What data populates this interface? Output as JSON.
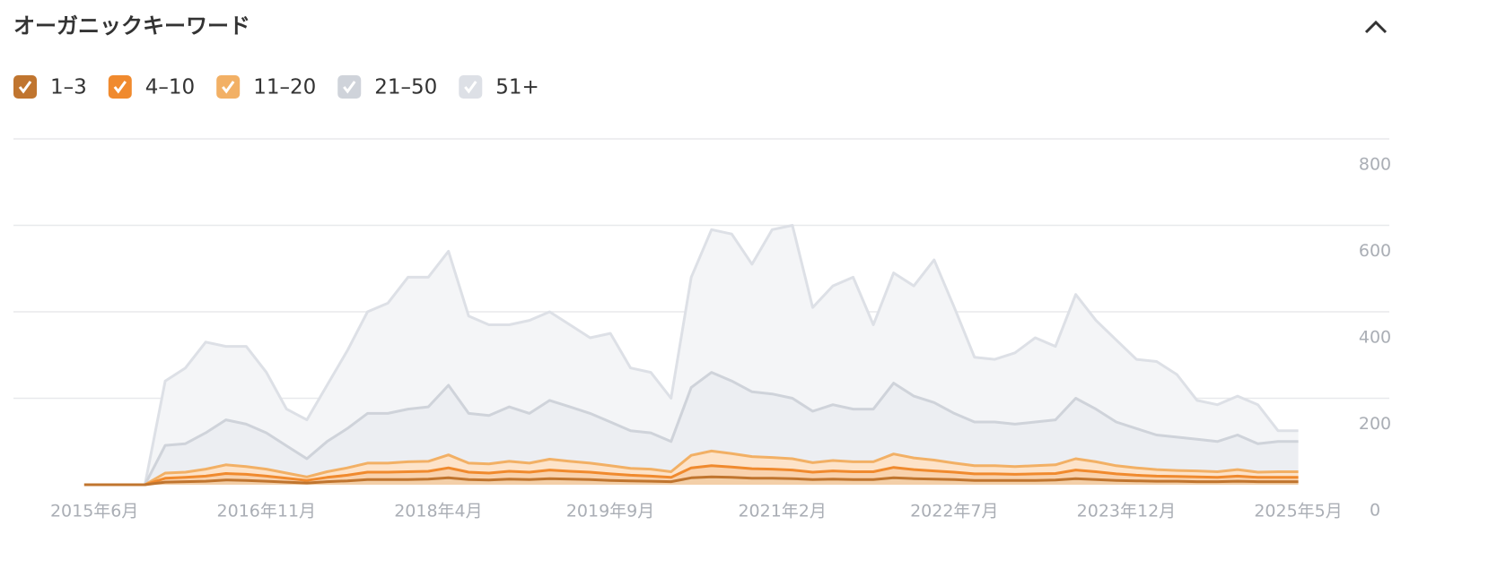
{
  "chart_data": {
    "type": "stacked_area",
    "title": "オーガニックキーワード",
    "x": [
      "2015-05",
      "2015-07",
      "2015-09",
      "2015-11",
      "2016-01",
      "2016-03",
      "2016-05",
      "2016-07",
      "2016-09",
      "2016-11",
      "2017-01",
      "2017-03",
      "2017-05",
      "2017-07",
      "2017-09",
      "2017-11",
      "2018-01",
      "2018-03",
      "2018-05",
      "2018-07",
      "2018-09",
      "2018-11",
      "2019-01",
      "2019-03",
      "2019-05",
      "2019-07",
      "2019-09",
      "2019-11",
      "2020-01",
      "2020-03",
      "2020-05",
      "2020-07",
      "2020-09",
      "2020-11",
      "2021-01",
      "2021-03",
      "2021-05",
      "2021-07",
      "2021-09",
      "2021-11",
      "2022-01",
      "2022-03",
      "2022-05",
      "2022-07",
      "2022-09",
      "2022-11",
      "2023-01",
      "2023-03",
      "2023-05",
      "2023-07",
      "2023-09",
      "2023-11",
      "2024-01",
      "2024-03",
      "2024-05",
      "2024-07",
      "2024-09",
      "2024-11",
      "2025-01",
      "2025-03",
      "2025-05"
    ],
    "series": [
      {
        "name": "1–3",
        "color": "#c0752f",
        "fill": "#f3cfa8",
        "values": [
          0,
          0,
          0,
          0,
          6,
          7,
          8,
          11,
          10,
          8,
          6,
          4,
          7,
          9,
          12,
          12,
          12,
          13,
          16,
          12,
          11,
          13,
          12,
          14,
          13,
          12,
          10,
          9,
          8,
          7,
          16,
          18,
          17,
          15,
          15,
          14,
          12,
          13,
          12,
          12,
          16,
          14,
          13,
          12,
          10,
          10,
          10,
          10,
          11,
          14,
          12,
          10,
          9,
          8,
          8,
          7,
          7,
          8,
          7,
          7,
          7
        ]
      },
      {
        "name": "4–10",
        "color": "#f08a2e",
        "fill": "#f9d2ad",
        "values": [
          0,
          0,
          0,
          0,
          9,
          10,
          12,
          15,
          14,
          12,
          9,
          6,
          10,
          13,
          17,
          17,
          18,
          18,
          23,
          17,
          16,
          18,
          17,
          20,
          18,
          17,
          15,
          13,
          12,
          10,
          23,
          26,
          24,
          22,
          21,
          20,
          17,
          19,
          18,
          18,
          24,
          21,
          19,
          17,
          15,
          15,
          14,
          15,
          15,
          20,
          18,
          15,
          13,
          12,
          11,
          11,
          10,
          12,
          10,
          10,
          10
        ]
      },
      {
        "name": "11–20",
        "color": "#f2b065",
        "fill": "#fde3c9",
        "values": [
          0,
          0,
          0,
          0,
          12,
          12,
          16,
          20,
          18,
          16,
          12,
          8,
          13,
          17,
          21,
          21,
          23,
          23,
          30,
          21,
          21,
          23,
          21,
          25,
          23,
          21,
          19,
          16,
          16,
          13,
          29,
          34,
          31,
          28,
          27,
          26,
          22,
          24,
          23,
          23,
          31,
          27,
          25,
          21,
          19,
          19,
          18,
          19,
          20,
          26,
          23,
          19,
          17,
          15,
          14,
          14,
          13,
          15,
          12,
          13,
          13
        ]
      },
      {
        "name": "21–50",
        "color": "#cfd3da",
        "fill": "#eceef2",
        "values": [
          0,
          0,
          0,
          0,
          64,
          66,
          84,
          104,
          98,
          84,
          63,
          42,
          70,
          91,
          115,
          115,
          122,
          126,
          161,
          115,
          112,
          126,
          115,
          136,
          126,
          115,
          101,
          87,
          84,
          70,
          157,
          182,
          168,
          150,
          147,
          140,
          119,
          129,
          122,
          122,
          164,
          143,
          133,
          115,
          101,
          101,
          98,
          101,
          104,
          140,
          122,
          101,
          91,
          80,
          77,
          73,
          70,
          80,
          66,
          70,
          70
        ]
      },
      {
        "name": "51+",
        "color": "#dde0e6",
        "fill": "#f4f5f7",
        "values": [
          0,
          0,
          0,
          0,
          149,
          175,
          210,
          170,
          180,
          140,
          85,
          90,
          130,
          180,
          235,
          255,
          305,
          300,
          310,
          225,
          210,
          190,
          215,
          205,
          190,
          175,
          205,
          145,
          140,
          100,
          255,
          330,
          340,
          295,
          380,
          400,
          240,
          275,
          305,
          195,
          255,
          255,
          330,
          245,
          150,
          145,
          165,
          195,
          170,
          240,
          205,
          190,
          160,
          170,
          145,
          90,
          85,
          90,
          90,
          25,
          25
        ]
      }
    ],
    "xlim": [
      "2014-10",
      "2026-02"
    ],
    "xticks": [
      {
        "value": "2015-06",
        "label": "2015年6月"
      },
      {
        "value": "2016-11",
        "label": "2016年11月"
      },
      {
        "value": "2018-04",
        "label": "2018年4月"
      },
      {
        "value": "2019-09",
        "label": "2019年9月"
      },
      {
        "value": "2021-02",
        "label": "2021年2月"
      },
      {
        "value": "2022-07",
        "label": "2022年7月"
      },
      {
        "value": "2023-12",
        "label": "2023年12月"
      },
      {
        "value": "2025-05",
        "label": "2025年5月"
      }
    ],
    "ylim": [
      0,
      800
    ],
    "yticks": [
      0,
      200,
      400,
      600,
      800
    ],
    "grid": true
  }
}
